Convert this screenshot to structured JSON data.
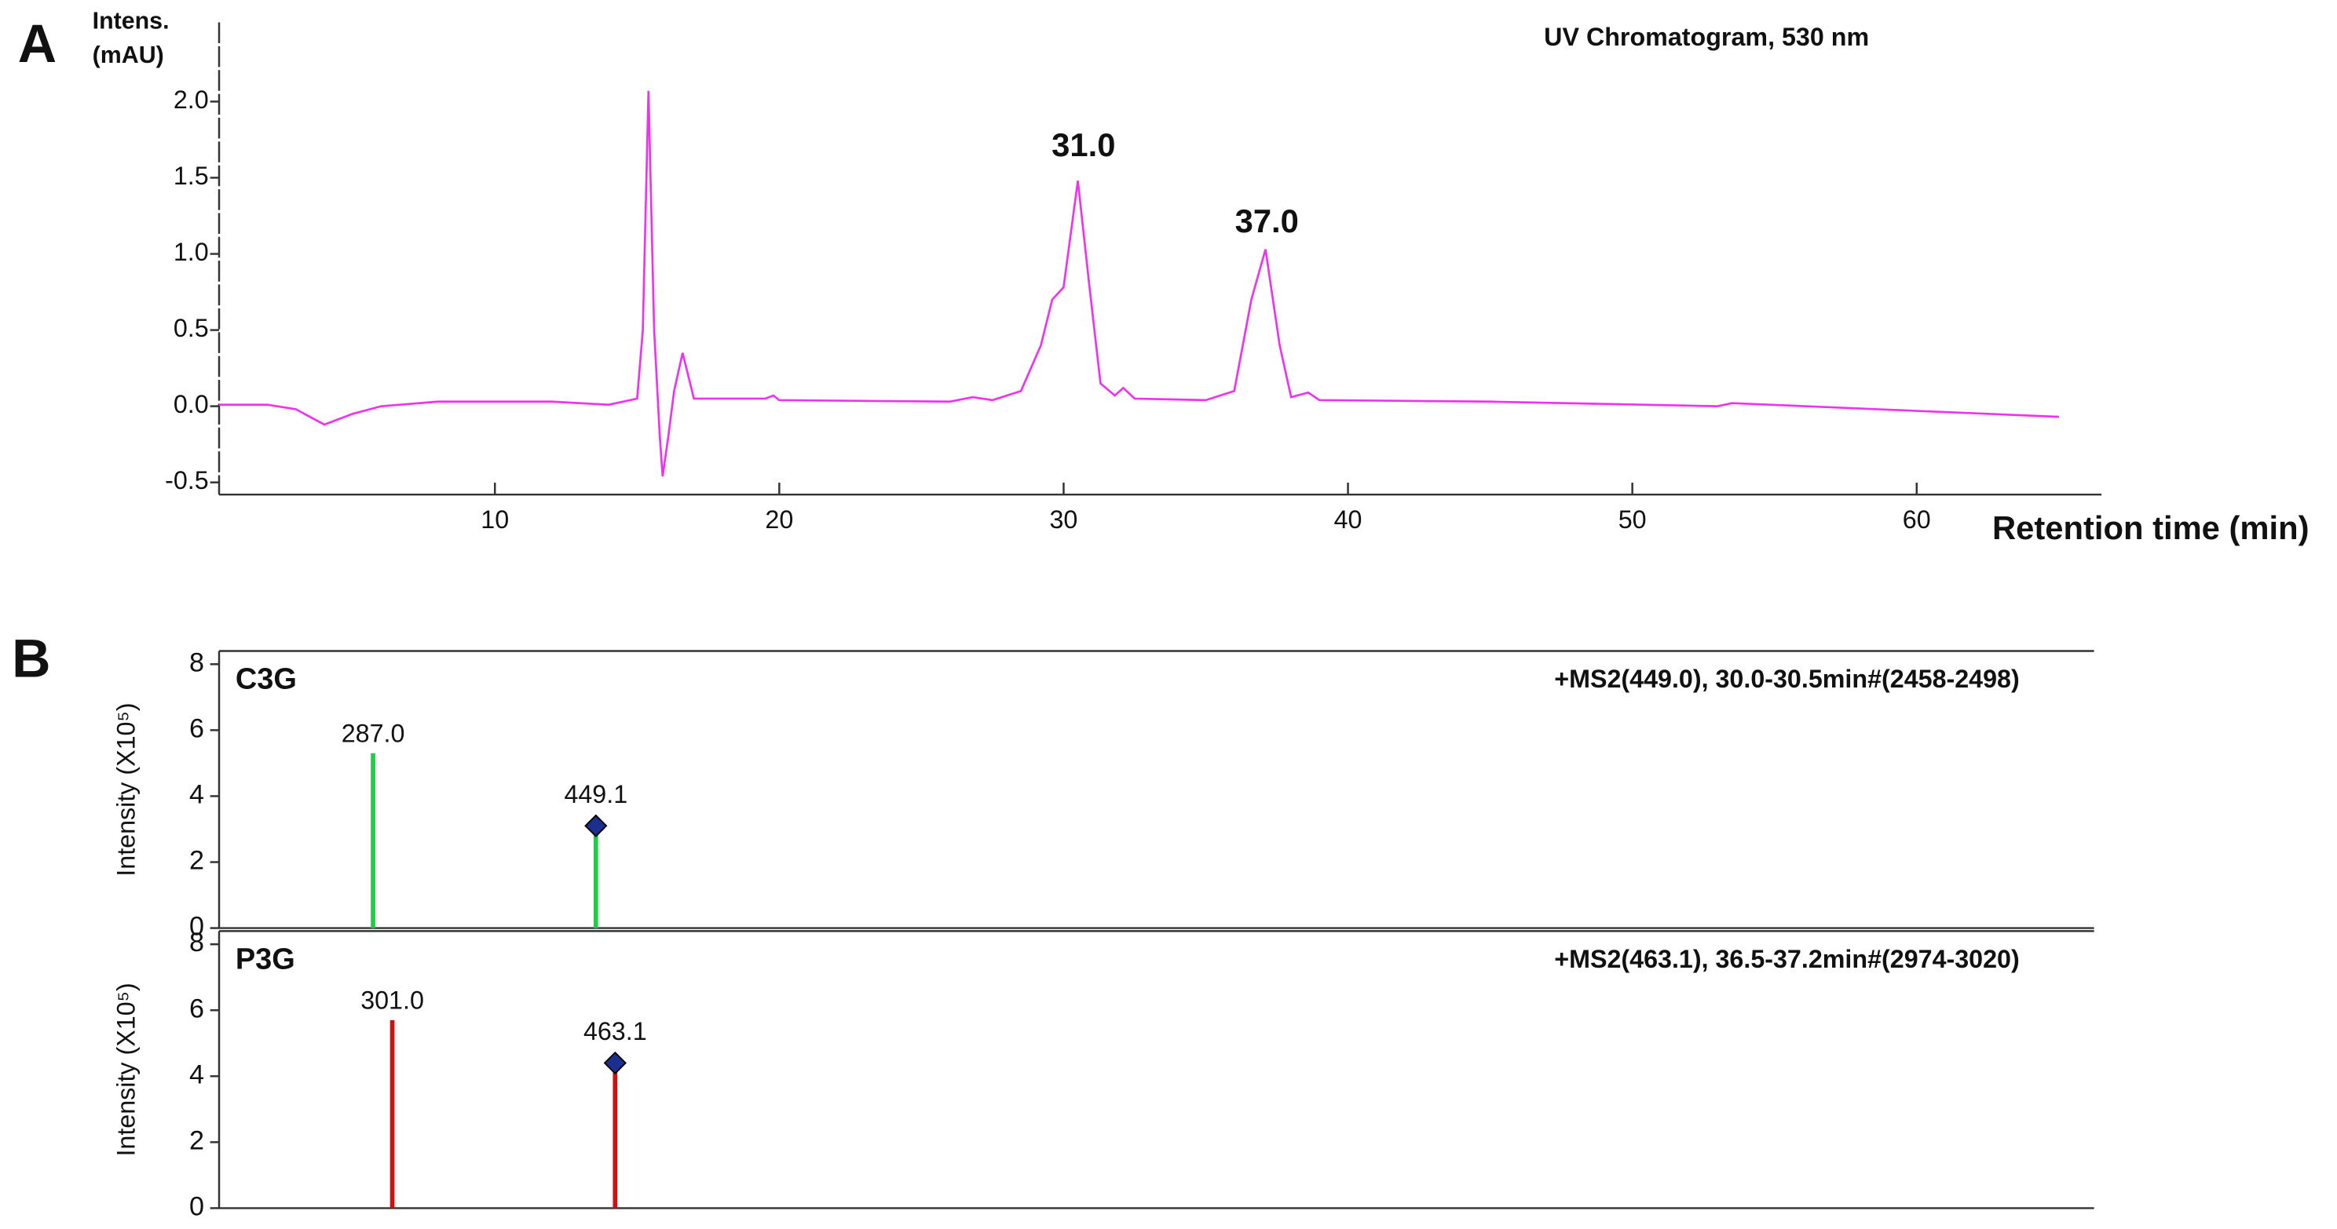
{
  "chart_data": [
    {
      "type": "line",
      "panel": "A",
      "title": "UV Chromatogram, 530 nm",
      "ylabel": [
        "Intens.",
        "(mAU)"
      ],
      "xlabel": "Retention time (min)",
      "annotations": [
        "31.0",
        "37.0"
      ],
      "color": "#ee33ee",
      "x": [
        0.3,
        2,
        3,
        4,
        5,
        6,
        8,
        12,
        14,
        15,
        15.2,
        15.4,
        15.6,
        15.8,
        15.9,
        16.1,
        16.3,
        16.6,
        17,
        18,
        19.5,
        19.8,
        20,
        26,
        26.8,
        27.5,
        28.5,
        29.2,
        29.6,
        30.0,
        30.5,
        30.9,
        31.3,
        31.8,
        32.1,
        32.5,
        35,
        36,
        36.6,
        37.1,
        37.6,
        38,
        38.6,
        39,
        45,
        53,
        53.5,
        60,
        65
      ],
      "values": [
        0.01,
        0.01,
        -0.02,
        -0.12,
        -0.05,
        0.0,
        0.03,
        0.03,
        0.01,
        0.05,
        0.5,
        2.07,
        0.5,
        -0.2,
        -0.46,
        -0.2,
        0.1,
        0.35,
        0.05,
        0.05,
        0.05,
        0.07,
        0.04,
        0.03,
        0.06,
        0.04,
        0.1,
        0.4,
        0.7,
        0.78,
        1.48,
        0.8,
        0.15,
        0.07,
        0.12,
        0.05,
        0.04,
        0.1,
        0.7,
        1.03,
        0.4,
        0.06,
        0.09,
        0.04,
        0.03,
        0.0,
        0.02,
        -0.03,
        -0.07
      ],
      "xlim": [
        0.3,
        66.5
      ],
      "ylim": [
        -0.58,
        2.52
      ],
      "xticks": [
        10,
        20,
        30,
        40,
        50,
        60
      ],
      "yticks": [
        -0.5,
        {
          "value": 0,
          "label": "0.0"
        },
        0.5,
        {
          "value": 1,
          "label": "1.0"
        },
        1.5,
        {
          "value": 2,
          "label": "2.0"
        }
      ]
    },
    {
      "type": "stem",
      "panel": "B",
      "label": "C3G",
      "title": "+MS2(449.0), 30.0-30.5min#(2458-2498)",
      "ylabel": "Intensity (X10⁵)",
      "color": "#22cc44",
      "marker_color": "#1a2f8f",
      "x": [
        287.0,
        449.1
      ],
      "x_labels": [
        "287.0",
        "449.1"
      ],
      "values": [
        5.3,
        3.1
      ],
      "marked": [
        false,
        true
      ],
      "xlim": [
        175,
        1539
      ],
      "ylim": [
        0,
        8.4
      ],
      "yticks": [
        0,
        2,
        4,
        6,
        8
      ]
    },
    {
      "type": "stem",
      "label": "P3G",
      "title": "+MS2(463.1), 36.5-37.2min#(2974-3020)",
      "ylabel": "Intensity (X10⁵)",
      "color": "#cc1111",
      "marker_color": "#1a2f8f",
      "x": [
        301.0,
        463.1
      ],
      "x_labels": [
        "301.0",
        "463.1"
      ],
      "values": [
        5.7,
        4.4
      ],
      "marked": [
        false,
        true
      ],
      "xlim": [
        175,
        1539
      ],
      "ylim": [
        0,
        8.4
      ],
      "yticks": [
        0,
        2,
        4,
        6,
        8
      ]
    }
  ]
}
